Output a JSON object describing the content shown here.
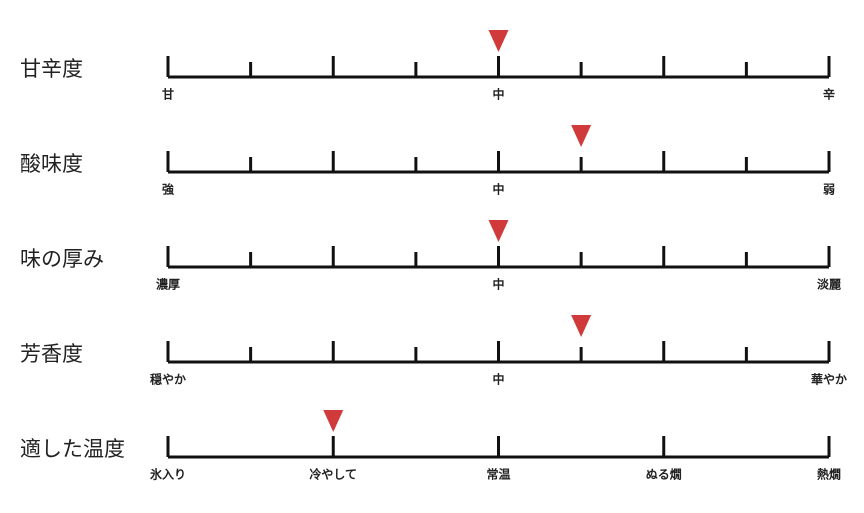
{
  "rows": [
    {
      "title": "甘辛度",
      "labels": [
        "甘",
        null,
        null,
        null,
        "中",
        null,
        null,
        null,
        "辛"
      ],
      "marker": 4
    },
    {
      "title": "酸味度",
      "labels": [
        "強",
        null,
        null,
        null,
        "中",
        null,
        null,
        null,
        "弱"
      ],
      "marker": 5
    },
    {
      "title": "味の厚み",
      "labels": [
        "濃厚",
        null,
        null,
        null,
        "中",
        null,
        null,
        null,
        "淡麗"
      ],
      "marker": 4
    },
    {
      "title": "芳香度",
      "labels": [
        "穏やか",
        null,
        null,
        null,
        "中",
        null,
        null,
        null,
        "華やか"
      ],
      "marker": 5
    },
    {
      "title": "適した温度",
      "labels": [
        "氷入り",
        "冷やして",
        "常温",
        "ぬる燗",
        "熱燗"
      ],
      "marker": 1
    }
  ]
}
